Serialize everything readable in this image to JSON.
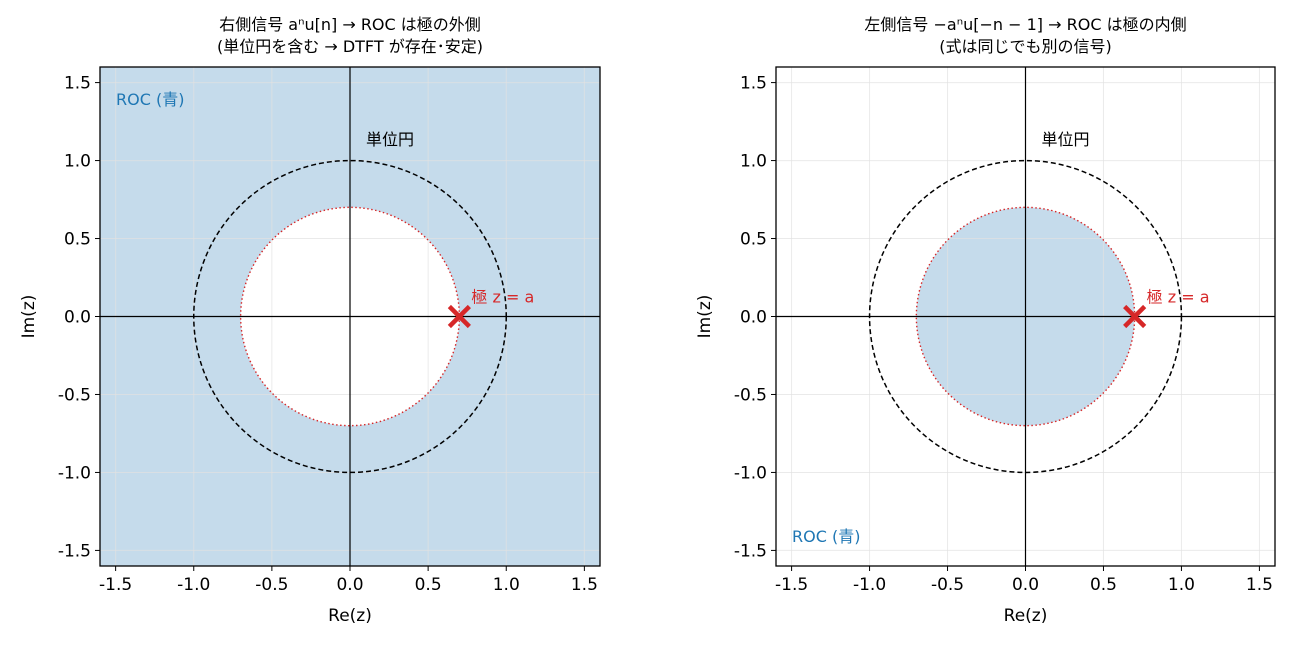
{
  "colors": {
    "roc_fill": "#c5dbeb",
    "roc_text": "#1f77b4",
    "pole": "#d62728",
    "unit_circle": "#000000",
    "grid": "#e2e2e2"
  },
  "chart_data": [
    {
      "type": "scatter",
      "title_line1": "右側信号 aⁿu[n] → ROC は極の外側",
      "title_line2": "(単位円を含む → DTFT が存在･安定)",
      "xlabel": "Re(z)",
      "ylabel": "Im(z)",
      "xlim": [
        -1.6,
        1.6
      ],
      "ylim": [
        -1.6,
        1.6
      ],
      "ticks": [
        -1.5,
        -1.0,
        -0.5,
        0.0,
        0.5,
        1.0,
        1.5
      ],
      "tick_labels": [
        "-1.5",
        "-1.0",
        "-0.5",
        "0.0",
        "0.5",
        "1.0",
        "1.5"
      ],
      "grid": true,
      "roc": "outside",
      "pole_radius": 0.7,
      "unit_circle_radius": 1.0,
      "pole": {
        "re": 0.7,
        "im": 0.0,
        "label": "極 z = a"
      },
      "unit_circle_label": "単位円",
      "roc_label": "ROC (青)",
      "roc_label_position": "top-left"
    },
    {
      "type": "scatter",
      "title_line1": "左側信号 −aⁿu[−n − 1] → ROC は極の内側",
      "title_line2": "(式は同じでも別の信号)",
      "xlabel": "Re(z)",
      "ylabel": "Im(z)",
      "xlim": [
        -1.6,
        1.6
      ],
      "ylim": [
        -1.6,
        1.6
      ],
      "ticks": [
        -1.5,
        -1.0,
        -0.5,
        0.0,
        0.5,
        1.0,
        1.5
      ],
      "tick_labels": [
        "-1.5",
        "-1.0",
        "-0.5",
        "0.0",
        "0.5",
        "1.0",
        "1.5"
      ],
      "grid": true,
      "roc": "inside",
      "pole_radius": 0.7,
      "unit_circle_radius": 1.0,
      "pole": {
        "re": 0.7,
        "im": 0.0,
        "label": "極 z = a"
      },
      "unit_circle_label": "単位円",
      "roc_label": "ROC (青)",
      "roc_label_position": "bottom-left"
    }
  ]
}
